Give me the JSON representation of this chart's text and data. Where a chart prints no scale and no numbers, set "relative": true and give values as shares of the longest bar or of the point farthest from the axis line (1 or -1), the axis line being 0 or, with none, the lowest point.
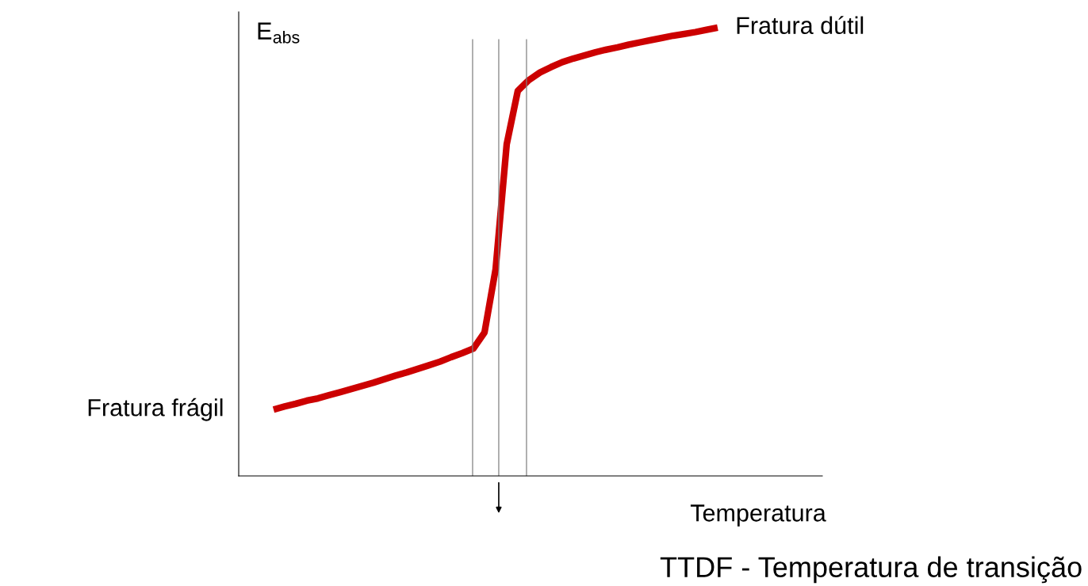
{
  "chart_data": {
    "type": "line",
    "relative": true,
    "xlabel": "Temperatura",
    "ylabel": "E$_{abs}$",
    "categories": [
      null,
      null,
      null,
      null,
      null,
      null,
      null,
      null,
      null,
      null,
      null,
      null,
      null,
      null,
      null,
      null,
      null,
      null,
      null,
      null,
      null,
      null,
      null,
      null,
      null,
      null,
      null,
      null,
      null,
      null,
      null,
      null,
      null,
      null,
      null,
      null,
      null,
      null,
      null,
      null,
      null
    ],
    "grid": false,
    "legend": false,
    "series": [
      {
        "color": "#cc0000",
        "values": [
          0.148,
          0.155,
          0.161,
          0.168,
          0.173,
          0.18,
          0.187,
          0.194,
          0.201,
          0.208,
          0.216,
          0.224,
          0.231,
          0.239,
          0.247,
          0.255,
          0.265,
          0.274,
          0.284,
          0.32,
          0.461,
          0.74,
          0.859,
          0.883,
          0.9,
          0.912,
          0.923,
          0.931,
          0.938,
          0.945,
          0.951,
          0.956,
          0.962,
          0.967,
          0.972,
          0.977,
          0.982,
          0.986,
          0.99,
          0.995,
          1
        ]
      }
    ],
    "annotations": [
      "Fratura frágil",
      "Fratura dútil",
      "TTDF - Temperatura de transição"
    ]
  }
}
